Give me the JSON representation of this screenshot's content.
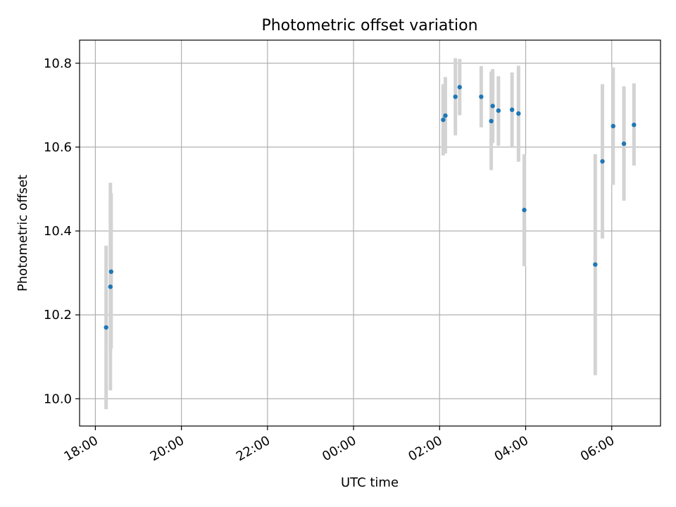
{
  "chart_data": {
    "type": "scatter",
    "title": "Photometric offset variation",
    "xlabel": "UTC time",
    "ylabel": "Photometric offset",
    "x_tick_labels": [
      "18:00",
      "20:00",
      "22:00",
      "00:00",
      "02:00",
      "04:00",
      "06:00"
    ],
    "y_tick_labels": [
      "10.0",
      "10.2",
      "10.4",
      "10.6",
      "10.8"
    ],
    "y_ticks": [
      10.0,
      10.2,
      10.4,
      10.6,
      10.8
    ],
    "xlim": [
      "17:38",
      "07:08"
    ],
    "ylim": [
      9.935,
      10.855
    ],
    "grid": true,
    "colors": {
      "points": "#1f77b4",
      "errorbars": "#d3d3d3",
      "grid": "#b0b0b0"
    },
    "points": [
      {
        "x": "18:15",
        "y": 10.17,
        "ylow": 9.975,
        "yhigh": 10.365
      },
      {
        "x": "18:21",
        "y": 10.267,
        "ylow": 10.02,
        "yhigh": 10.515
      },
      {
        "x": "18:22",
        "y": 10.303,
        "ylow": 10.12,
        "yhigh": 10.49
      },
      {
        "x": "02:05",
        "y": 10.665,
        "ylow": 10.58,
        "yhigh": 10.75
      },
      {
        "x": "02:08",
        "y": 10.675,
        "ylow": 10.585,
        "yhigh": 10.767
      },
      {
        "x": "02:22",
        "y": 10.72,
        "ylow": 10.628,
        "yhigh": 10.812
      },
      {
        "x": "02:28",
        "y": 10.743,
        "ylow": 10.676,
        "yhigh": 10.81
      },
      {
        "x": "02:58",
        "y": 10.72,
        "ylow": 10.647,
        "yhigh": 10.793
      },
      {
        "x": "03:12",
        "y": 10.662,
        "ylow": 10.545,
        "yhigh": 10.78
      },
      {
        "x": "03:14",
        "y": 10.698,
        "ylow": 10.61,
        "yhigh": 10.786
      },
      {
        "x": "03:22",
        "y": 10.687,
        "ylow": 10.603,
        "yhigh": 10.769
      },
      {
        "x": "03:41",
        "y": 10.689,
        "ylow": 10.6,
        "yhigh": 10.778
      },
      {
        "x": "03:50",
        "y": 10.68,
        "ylow": 10.565,
        "yhigh": 10.794
      },
      {
        "x": "03:58",
        "y": 10.45,
        "ylow": 10.316,
        "yhigh": 10.583
      },
      {
        "x": "05:37",
        "y": 10.32,
        "ylow": 10.056,
        "yhigh": 10.583
      },
      {
        "x": "05:47",
        "y": 10.566,
        "ylow": 10.382,
        "yhigh": 10.75
      },
      {
        "x": "06:02",
        "y": 10.65,
        "ylow": 10.51,
        "yhigh": 10.79
      },
      {
        "x": "06:17",
        "y": 10.608,
        "ylow": 10.472,
        "yhigh": 10.745
      },
      {
        "x": "06:31",
        "y": 10.653,
        "ylow": 10.556,
        "yhigh": 10.752
      }
    ]
  }
}
